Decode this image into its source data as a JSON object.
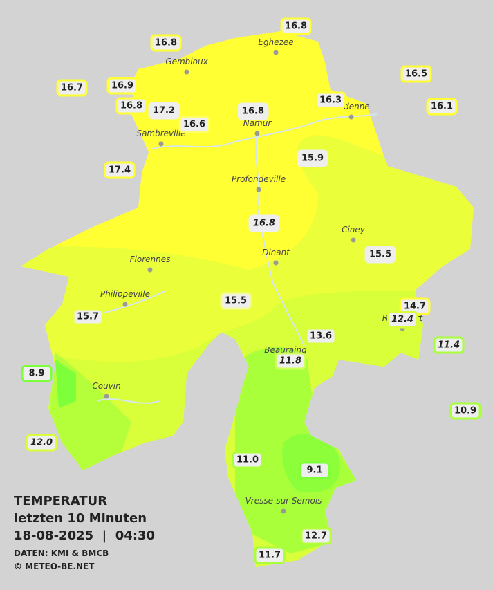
{
  "legend": {
    "title": "TEMPERATUR",
    "period": "letzten 10 Minuten",
    "datetime": "18-08-2025  |  04:30",
    "source": "DATEN: KMI & BMCB",
    "copyright": "© METEO-BE.NET"
  },
  "cities": [
    "Eghezee",
    "Gembloux",
    "Andenne",
    "Namur",
    "Sambreville",
    "Profondeville",
    "Ciney",
    "Dinant",
    "Florennes",
    "Philippeville",
    "Rochefort",
    "Beauraing",
    "Couvin",
    "Vresse-sur-Semois"
  ],
  "stations": [
    {
      "label": "16.8",
      "border": "#ffff33",
      "italic": false
    },
    {
      "label": "16.8",
      "border": "#ffff33",
      "italic": false
    },
    {
      "label": "16.5",
      "border": "#ffff33",
      "italic": false
    },
    {
      "label": "16.7",
      "border": "#ffff33",
      "italic": false
    },
    {
      "label": "16.9",
      "border": "#ffff33",
      "italic": false
    },
    {
      "label": "16.8",
      "border": "#ffff33",
      "italic": false
    },
    {
      "label": "17.2",
      "border": "#eeeeee",
      "italic": false
    },
    {
      "label": "16.6",
      "border": "#ffff66",
      "italic": false
    },
    {
      "label": "16.8",
      "border": "#eeeeee",
      "italic": false
    },
    {
      "label": "16.3",
      "border": "#ffff33",
      "italic": false
    },
    {
      "label": "16.1",
      "border": "#ffff33",
      "italic": false
    },
    {
      "label": "17.4",
      "border": "#ffff33",
      "italic": false
    },
    {
      "label": "15.9",
      "border": "#eeeeee",
      "italic": false
    },
    {
      "label": "16.8",
      "border": "#eeeeee",
      "italic": true
    },
    {
      "label": "15.5",
      "border": "#eeeeee",
      "italic": false
    },
    {
      "label": "15.5",
      "border": "#f4f8a0",
      "italic": false
    },
    {
      "label": "15.7",
      "border": "#eaff3a",
      "italic": false
    },
    {
      "label": "14.7",
      "border": "#ffff33",
      "italic": false
    },
    {
      "label": "12.4",
      "border": "#d8ff3a",
      "italic": true
    },
    {
      "label": "13.6",
      "border": "#d8ff3a",
      "italic": false
    },
    {
      "label": "11.4",
      "border": "#a8ff3a",
      "italic": true
    },
    {
      "label": "11.8",
      "border": "#d0ff5a",
      "italic": true
    },
    {
      "label": "8.9",
      "border": "#7dff3a",
      "italic": false
    },
    {
      "label": "10.9",
      "border": "#a8ff3a",
      "italic": false
    },
    {
      "label": "12.0",
      "border": "#d8ff3a",
      "italic": true
    },
    {
      "label": "11.0",
      "border": "#a8ff3a",
      "italic": false
    },
    {
      "label": "9.1",
      "border": "#7dff3a",
      "italic": false
    },
    {
      "label": "12.7",
      "border": "#b5ff3a",
      "italic": false
    },
    {
      "label": "11.7",
      "border": "#a8ff3a",
      "italic": false
    }
  ]
}
